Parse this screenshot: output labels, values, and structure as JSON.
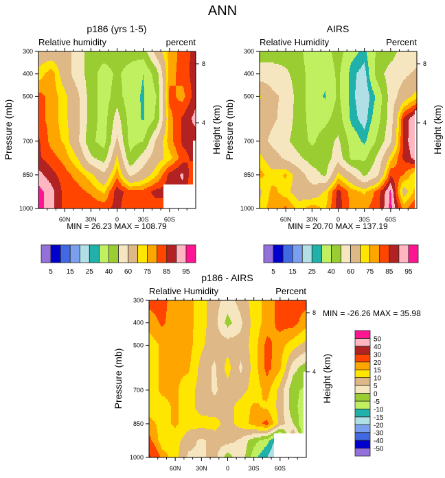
{
  "page_title": "ANN",
  "chart_data": [
    {
      "id": "model",
      "type": "heatmap",
      "title": "p186 (yrs 1-5)",
      "left_label": "Relative humidity",
      "right_label": "percent",
      "ylabel": "Pressure (mb)",
      "y2label": "Height (km)",
      "x_ticks": [
        {
          "label": "60N",
          "lat": 60
        },
        {
          "label": "30N",
          "lat": 30
        },
        {
          "label": "0",
          "lat": 0
        },
        {
          "label": "30S",
          "lat": -30
        },
        {
          "label": "60S",
          "lat": -60
        }
      ],
      "y_ticks": [
        300,
        400,
        500,
        700,
        850,
        1000
      ],
      "y2_ticks": [
        {
          "label": "8",
          "p": 355
        },
        {
          "label": "4",
          "p": 618
        }
      ],
      "stats": "MIN =  26.23  MAX = 108.79",
      "xlim": [
        90,
        -90
      ],
      "ylim": [
        300,
        1000
      ],
      "lat": [
        90,
        75,
        60,
        45,
        30,
        15,
        0,
        -15,
        -30,
        -45,
        -60,
        -75,
        -90
      ],
      "pressure": [
        300,
        400,
        500,
        600,
        700,
        775,
        850,
        925,
        1000
      ],
      "values": [
        [
          65,
          65,
          65,
          55,
          45,
          45,
          45,
          45,
          45,
          65,
          77,
          82,
          87
        ],
        [
          72,
          78,
          65,
          55,
          45,
          35,
          42,
          35,
          30,
          45,
          78,
          82,
          88
        ],
        [
          82,
          78,
          72,
          62,
          45,
          35,
          45,
          33,
          29,
          40,
          82,
          78,
          88
        ],
        [
          82,
          78,
          72,
          63,
          45,
          35,
          55,
          35,
          29,
          42,
          78,
          86,
          92
        ],
        [
          86,
          78,
          74,
          62,
          42,
          36,
          62,
          36,
          40,
          62,
          78,
          86,
          87
        ],
        [
          86,
          82,
          78,
          70,
          52,
          45,
          72,
          42,
          55,
          66,
          73,
          83,
          87
        ],
        [
          92,
          87,
          82,
          78,
          72,
          62,
          78,
          58,
          65,
          74,
          87,
          91,
          78
        ],
        [
          97,
          92,
          83,
          82,
          79,
          74,
          88,
          82,
          82,
          87,
          87,
          88,
          80
        ],
        [
          97,
          92,
          83,
          82,
          84,
          83,
          87,
          80,
          83,
          82,
          82,
          82,
          80
        ]
      ],
      "missing": [
        {
          "lat": [
            -53,
            -90
          ],
          "p": [
            890,
            1000
          ]
        },
        {
          "lat": [
            -87,
            -90
          ],
          "p": [
            700,
            1000
          ]
        }
      ],
      "levels": [
        5,
        10,
        15,
        20,
        25,
        30,
        40,
        50,
        60,
        70,
        75,
        80,
        85,
        90,
        95
      ],
      "colorbar_labels": [
        "5",
        "15",
        "25",
        "40",
        "60",
        "75",
        "85",
        "95"
      ],
      "colorbar_label_boundaries": [
        1,
        3,
        5,
        7,
        9,
        11,
        13,
        15
      ]
    },
    {
      "id": "obs",
      "type": "heatmap",
      "title": "AIRS",
      "left_label": "Relative Humidity",
      "right_label": "Percent",
      "ylabel": "Pressure (mb)",
      "y2label": "Height (km)",
      "x_ticks": [
        {
          "label": "60N",
          "lat": 60
        },
        {
          "label": "30N",
          "lat": 30
        },
        {
          "label": "0",
          "lat": 0
        },
        {
          "label": "30S",
          "lat": -30
        },
        {
          "label": "60S",
          "lat": -60
        }
      ],
      "y_ticks": [
        300,
        400,
        500,
        700,
        850,
        1000
      ],
      "y2_ticks": [
        {
          "label": "8",
          "p": 355
        },
        {
          "label": "4",
          "p": 618
        }
      ],
      "stats": "MIN =  20.70  MAX = 137.19",
      "xlim": [
        90,
        -90
      ],
      "ylim": [
        300,
        1000
      ],
      "lat": [
        90,
        75,
        60,
        45,
        30,
        15,
        0,
        -15,
        -30,
        -45,
        -60,
        -75,
        -90
      ],
      "pressure": [
        300,
        400,
        500,
        600,
        700,
        775,
        850,
        925,
        1000
      ],
      "values": [
        [
          45,
          45,
          45,
          42,
          35,
          35,
          45,
          33,
          28,
          42,
          45,
          55,
          55
        ],
        [
          55,
          55,
          52,
          45,
          35,
          33,
          42,
          27,
          22,
          45,
          55,
          58,
          62
        ],
        [
          71,
          62,
          58,
          45,
          35,
          29,
          42,
          27,
          20,
          32,
          55,
          65,
          73
        ],
        [
          65,
          62,
          56,
          45,
          36,
          37,
          45,
          28,
          22,
          36,
          55,
          86,
          96
        ],
        [
          65,
          57,
          52,
          45,
          38,
          45,
          52,
          36,
          28,
          42,
          58,
          87,
          96
        ],
        [
          72,
          65,
          58,
          52,
          45,
          44,
          56,
          38,
          38,
          52,
          73,
          86,
          93
        ],
        [
          77,
          72,
          76,
          65,
          55,
          48,
          72,
          62,
          48,
          58,
          84,
          80,
          70
        ],
        [
          68,
          77,
          72,
          66,
          64,
          71,
          87,
          78,
          74,
          82,
          96,
          66,
          78
        ],
        [
          72,
          78,
          81,
          73,
          78,
          74,
          88,
          78,
          79,
          83,
          97,
          78,
          86
        ]
      ],
      "missing": [
        {
          "lat": [
            -88,
            -90
          ],
          "p": [
            560,
            1000
          ]
        }
      ],
      "levels": [
        5,
        10,
        15,
        20,
        25,
        30,
        40,
        50,
        60,
        70,
        75,
        80,
        85,
        90,
        95
      ],
      "colorbar_labels": [
        "5",
        "15",
        "25",
        "40",
        "60",
        "75",
        "85",
        "95"
      ],
      "colorbar_label_boundaries": [
        1,
        3,
        5,
        7,
        9,
        11,
        13,
        15
      ]
    },
    {
      "id": "diff",
      "type": "heatmap",
      "title": "p186 - AIRS",
      "left_label": "Relative Humidity",
      "right_label": "Percent",
      "ylabel": "Pressure (mb)",
      "y2label": "Height (km)",
      "x_ticks": [
        {
          "label": "60N",
          "lat": 60
        },
        {
          "label": "30N",
          "lat": 30
        },
        {
          "label": "0",
          "lat": 0
        },
        {
          "label": "30S",
          "lat": -30
        },
        {
          "label": "60S",
          "lat": -60
        }
      ],
      "y_ticks": [
        300,
        400,
        500,
        700,
        850,
        1000
      ],
      "y2_ticks": [
        {
          "label": "8",
          "p": 355
        },
        {
          "label": "4",
          "p": 618
        }
      ],
      "stats": "MIN = -26.26  MAX =  35.98",
      "xlim": [
        90,
        -90
      ],
      "ylim": [
        300,
        1000
      ],
      "lat": [
        90,
        75,
        60,
        45,
        30,
        15,
        0,
        -15,
        -30,
        -45,
        -60,
        -75,
        -90
      ],
      "pressure": [
        300,
        400,
        500,
        600,
        700,
        775,
        850,
        925,
        1000
      ],
      "values": [
        [
          22,
          22,
          17,
          17,
          12,
          7,
          3,
          7,
          12,
          17,
          22,
          22,
          22
        ],
        [
          17,
          21,
          17,
          17,
          12,
          7,
          -2,
          4,
          12,
          17,
          22,
          22,
          17
        ],
        [
          12,
          16,
          17,
          17,
          11,
          7,
          8,
          7,
          12,
          22,
          17,
          12,
          8
        ],
        [
          12,
          16,
          16,
          16,
          8,
          4,
          12,
          4,
          12,
          22,
          16,
          2,
          -3
        ],
        [
          12,
          16,
          16,
          12,
          8,
          4,
          8,
          8,
          12,
          17,
          8,
          -4,
          -6
        ],
        [
          12,
          13,
          16,
          12,
          8,
          7,
          8,
          12,
          16,
          14,
          8,
          -4,
          -7
        ],
        [
          17,
          13,
          16,
          12,
          12,
          12,
          8,
          12,
          17,
          22,
          8,
          0,
          -12
        ],
        [
          22,
          12,
          12,
          7,
          4,
          7,
          7,
          4,
          -3,
          -8,
          -20,
          15,
          -12
        ],
        [
          32,
          18,
          12,
          4,
          4,
          7,
          -3,
          4,
          -8,
          -15,
          -25,
          10,
          -12
        ]
      ],
      "missing": [
        {
          "lat": [
            -53,
            -90
          ],
          "p": [
            890,
            1000
          ]
        },
        {
          "lat": [
            -87,
            -90
          ],
          "p": [
            620,
            1000
          ]
        }
      ],
      "levels": [
        -50,
        -40,
        -30,
        -20,
        -15,
        -10,
        -5,
        0,
        5,
        10,
        15,
        20,
        30,
        40,
        50
      ],
      "colorbar_labels": [
        "-50",
        "-40",
        "-30",
        "-20",
        "-15",
        "-10",
        "-5",
        "0",
        "5",
        "10",
        "15",
        "20",
        "30",
        "40",
        "50"
      ],
      "colorbar_label_boundaries": [
        1,
        2,
        3,
        4,
        5,
        6,
        7,
        8,
        9,
        10,
        11,
        12,
        13,
        14,
        15
      ]
    }
  ],
  "palette": [
    "#9370DB",
    "#0000CD",
    "#4169E1",
    "#7B9FEF",
    "#B0E0E6",
    "#20B2AA",
    "#C0F060",
    "#9ACD32",
    "#F5E6C0",
    "#DEB887",
    "#FFE600",
    "#FFA500",
    "#FF4500",
    "#B22222",
    "#FFB6C1",
    "#FF1493"
  ],
  "missing_color": "#FFFFFF"
}
